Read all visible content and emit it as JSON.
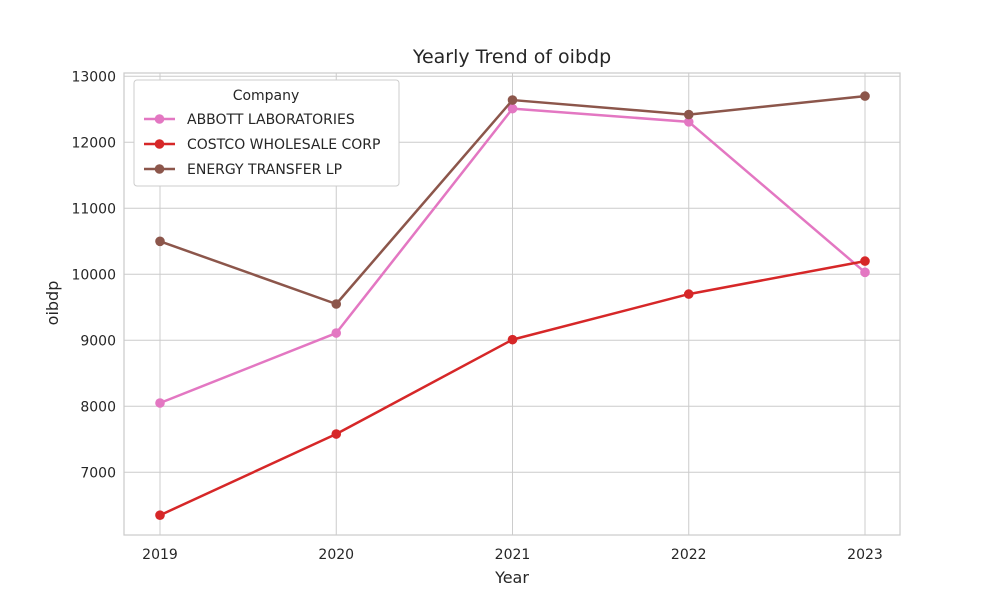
{
  "chart_data": {
    "type": "line",
    "title": "Yearly Trend of oibdp",
    "xlabel": "Year",
    "ylabel": "oibdp",
    "x": [
      "2019",
      "2020",
      "2021",
      "2022",
      "2023"
    ],
    "yticks": [
      7000,
      8000,
      9000,
      10000,
      11000,
      12000,
      13000
    ],
    "ylim": [
      6050,
      13050
    ],
    "grid": true,
    "legend": {
      "title": "Company",
      "placement": "top-left"
    },
    "series": [
      {
        "name": "ABBOTT LABORATORIES",
        "color": "#e377c2",
        "values": [
          8050,
          9110,
          12510,
          12310,
          10030
        ]
      },
      {
        "name": "COSTCO WHOLESALE CORP",
        "color": "#d62728",
        "values": [
          6350,
          7580,
          9010,
          9700,
          10200
        ]
      },
      {
        "name": "ENERGY TRANSFER LP",
        "color": "#8c564b",
        "values": [
          10500,
          9550,
          12640,
          12420,
          12700
        ]
      }
    ]
  }
}
